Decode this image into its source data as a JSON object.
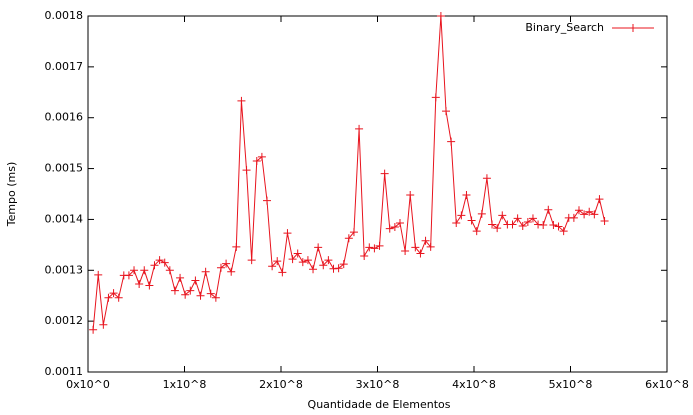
{
  "chart_data": {
    "type": "line",
    "xlabel": "Quantidade de Elementos",
    "ylabel": "Tempo (ms)",
    "x": [
      5300000,
      10600000,
      15900000,
      21200000,
      26500000,
      31800000,
      37100000,
      42400000,
      47700000,
      53000000,
      58300000,
      63600000,
      68900000,
      74200000,
      79500000,
      84800000,
      90100000,
      95400000,
      100700000,
      106000000,
      111300000,
      116600000,
      121900000,
      127200000,
      132500000,
      137800000,
      143100000,
      148400000,
      153700000,
      159000000,
      164300000,
      169600000,
      174900000,
      180200000,
      185500000,
      190800000,
      196100000,
      201400000,
      206700000,
      212000000,
      217300000,
      222600000,
      227900000,
      233200000,
      238500000,
      243800000,
      249100000,
      254400000,
      259700000,
      265000000,
      270300000,
      275600000,
      280900000,
      286200000,
      291500000,
      296800000,
      302100000,
      307400000,
      312700000,
      318000000,
      323300000,
      328600000,
      333900000,
      339200000,
      344500000,
      349800000,
      355100000,
      360400000,
      365700000,
      371000000,
      376300000,
      381600000,
      386900000,
      392200000,
      397500000,
      402800000,
      408100000,
      413400000,
      418700000,
      424000000,
      429300000,
      434600000,
      439900000,
      445200000,
      450500000,
      455800000,
      461100000,
      466400000,
      471700000,
      477000000,
      482300000,
      487600000,
      492900000,
      498200000,
      503500000,
      508800000,
      514100000,
      519400000,
      524700000,
      530000000,
      535300000
    ],
    "series": [
      {
        "name": "Binary_Search",
        "color": "#e8141e",
        "values": [
          0.001183,
          0.001291,
          0.001193,
          0.001246,
          0.001255,
          0.001246,
          0.00129,
          0.00129,
          0.0013,
          0.001273,
          0.0013,
          0.00127,
          0.00131,
          0.00132,
          0.001315,
          0.0013,
          0.00126,
          0.001285,
          0.001252,
          0.00126,
          0.00128,
          0.00125,
          0.001297,
          0.001254,
          0.001246,
          0.001305,
          0.001313,
          0.001297,
          0.001346,
          0.001633,
          0.001497,
          0.00132,
          0.001515,
          0.001523,
          0.001437,
          0.001308,
          0.001318,
          0.001296,
          0.001373,
          0.001322,
          0.001333,
          0.001316,
          0.00132,
          0.001302,
          0.001345,
          0.00131,
          0.00132,
          0.001303,
          0.001304,
          0.001312,
          0.001363,
          0.001375,
          0.001578,
          0.001328,
          0.001345,
          0.001343,
          0.001348,
          0.00149,
          0.001382,
          0.001385,
          0.001393,
          0.001338,
          0.001448,
          0.001345,
          0.001333,
          0.001358,
          0.001346,
          0.00164,
          0.0018,
          0.001613,
          0.001553,
          0.001393,
          0.001408,
          0.001448,
          0.001398,
          0.001377,
          0.001411,
          0.001481,
          0.00139,
          0.001383,
          0.001408,
          0.00139,
          0.00139,
          0.001402,
          0.001387,
          0.001395,
          0.001402,
          0.00139,
          0.001389,
          0.001419,
          0.001389,
          0.001386,
          0.001377,
          0.001403,
          0.001403,
          0.001418,
          0.00141,
          0.001415,
          0.00141,
          0.00144,
          0.001397
        ]
      }
    ],
    "xlim": [
      0,
      600000000
    ],
    "xticks": [
      {
        "value": 0,
        "label": "0x10^0"
      },
      {
        "value": 100000000,
        "label": "1x10^8"
      },
      {
        "value": 200000000,
        "label": "2x10^8"
      },
      {
        "value": 300000000,
        "label": "3x10^8"
      },
      {
        "value": 400000000,
        "label": "4x10^8"
      },
      {
        "value": 500000000,
        "label": "5x10^8"
      },
      {
        "value": 600000000,
        "label": "6x10^8"
      }
    ],
    "ylim": [
      0.0011,
      0.0018
    ],
    "yticks": [
      0.0011,
      0.0012,
      0.0013,
      0.0014,
      0.0015,
      0.0016,
      0.0017,
      0.0018
    ],
    "grid": false,
    "legend": "upper right"
  }
}
